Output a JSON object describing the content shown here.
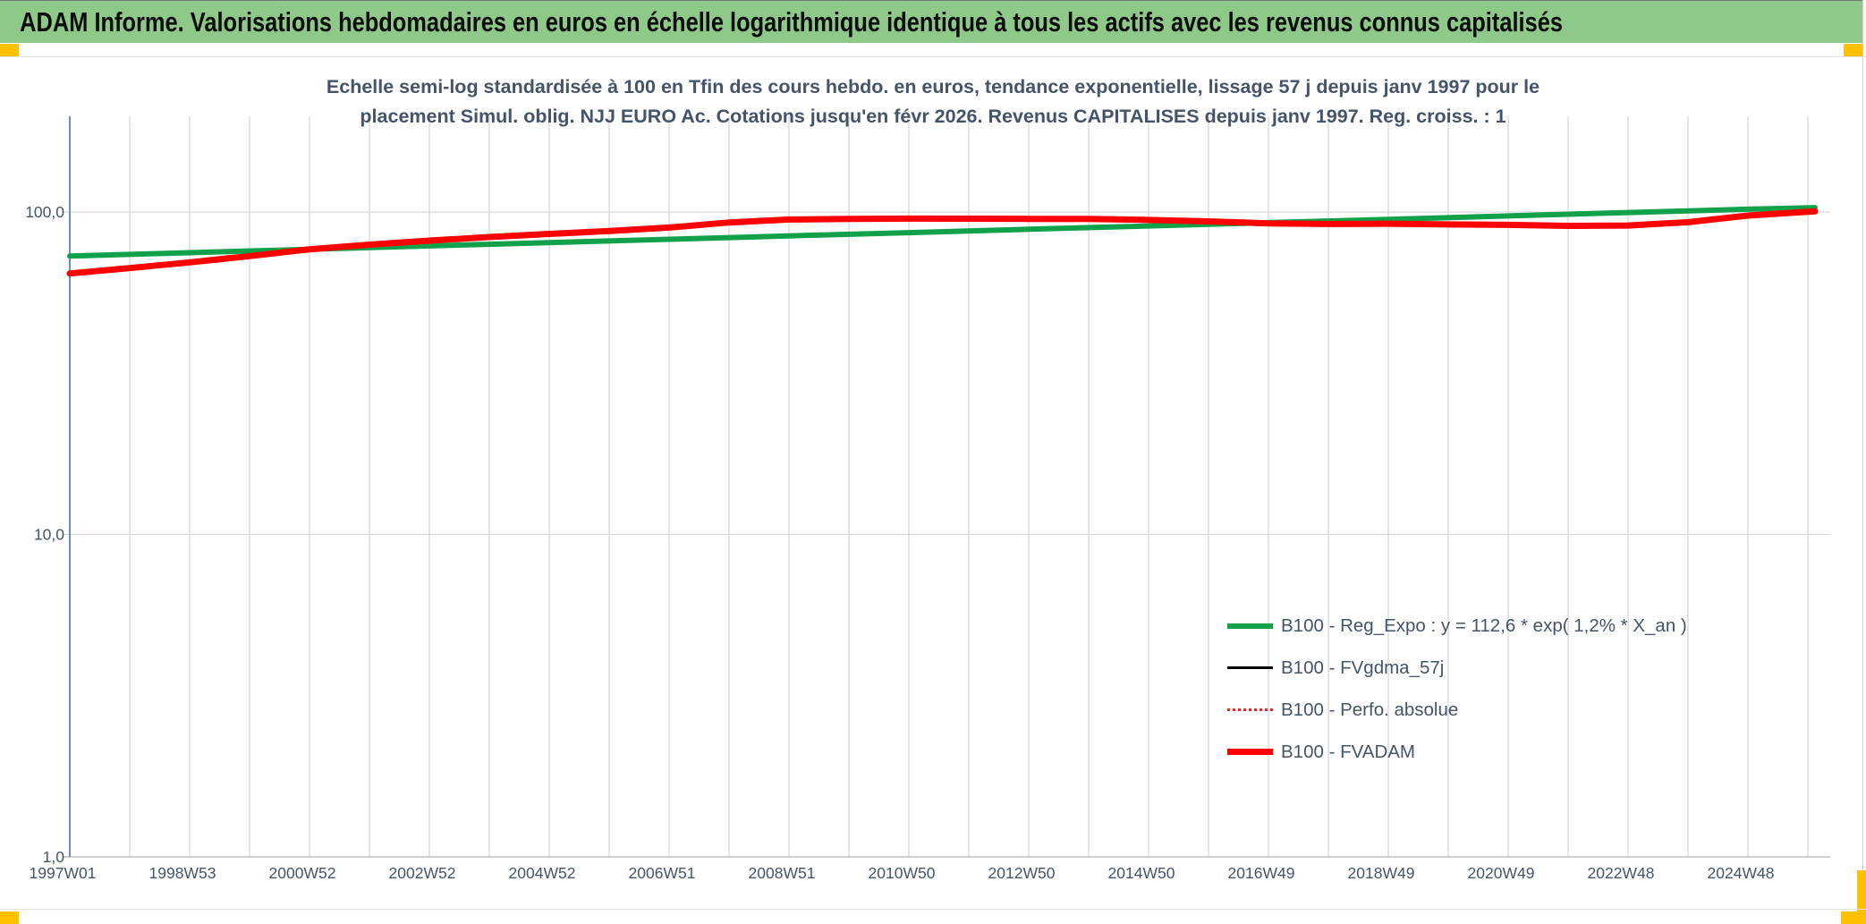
{
  "header": {
    "title": "ADAM Informe. Valorisations hebdomadaires en euros en échelle logarithmique identique à tous les actifs avec les revenus connus capitalisés",
    "bg_color": "#8FC98A",
    "text_color": "#0d0d0d"
  },
  "accents": {
    "orange_marker": "#FFC000",
    "grid_color": "#D9D9D9",
    "axis_line_color": "#BFBFBF",
    "y_axis_color": "#4472C4",
    "text_navy": "#44546A"
  },
  "chart_data": {
    "type": "line",
    "title_line1": "Echelle semi-log standardisée à 100 en Tfin des cours hebdo. en euros, tendance exponentielle, lissage 57 j depuis janv 1997 pour le",
    "title_line2": "placement Simul. oblig. NJJ EURO Ac. Cotations jusqu'en févr 2026. Revenus CAPITALISES depuis janv 1997. Reg. croiss. : 1",
    "y_scale": "log10",
    "ylim": [
      1,
      200
    ],
    "x_range_years": [
      1997.0,
      2026.3
    ],
    "grid": "on",
    "legend_position": "lower right",
    "y_ticks": [
      {
        "label": "100,0",
        "value": 100
      },
      {
        "label": "10,0",
        "value": 10
      },
      {
        "label": "1,0",
        "value": 1
      }
    ],
    "x_tick_labels": [
      "1997W01",
      "1998W53",
      "2000W52",
      "2002W52",
      "2004W52",
      "2006W51",
      "2008W51",
      "2010W50",
      "2012W50",
      "2014W50",
      "2016W49",
      "2018W49",
      "2020W49",
      "2022W48",
      "2024W48"
    ],
    "series": [
      {
        "name": "B100 - Reg_Expo : y = 112,6 * exp( 1,2% * X_an )",
        "color": "#12A14B",
        "width": 6,
        "style": "solid",
        "points": [
          [
            1997.0,
            73.0
          ],
          [
            1999,
            74.8
          ],
          [
            2001,
            76.6
          ],
          [
            2003,
            78.5
          ],
          [
            2005,
            80.4
          ],
          [
            2007,
            82.3
          ],
          [
            2009,
            84.3
          ],
          [
            2011,
            86.3
          ],
          [
            2013,
            88.4
          ],
          [
            2015,
            90.5
          ],
          [
            2017,
            92.7
          ],
          [
            2019,
            94.9
          ],
          [
            2021,
            97.2
          ],
          [
            2023,
            99.6
          ],
          [
            2025,
            102.0
          ],
          [
            2026.12,
            103.2
          ]
        ]
      },
      {
        "name": "B100 - FVgdma_57j",
        "color": "#000000",
        "width": 2.5,
        "style": "solid",
        "points": [
          [
            1997.0,
            64.5
          ],
          [
            1998,
            67.0
          ],
          [
            1999,
            69.8
          ],
          [
            2000,
            73.0
          ],
          [
            2001,
            76.6
          ],
          [
            2002,
            79.2
          ],
          [
            2003,
            81.5
          ],
          [
            2004,
            83.6
          ],
          [
            2005,
            85.5
          ],
          [
            2006,
            87.3
          ],
          [
            2007,
            89.5
          ],
          [
            2008,
            92.8
          ],
          [
            2009,
            94.8
          ],
          [
            2010,
            95.2
          ],
          [
            2011,
            95.4
          ],
          [
            2012,
            95.3
          ],
          [
            2013,
            95.2
          ],
          [
            2014,
            95.2
          ],
          [
            2015,
            94.5
          ],
          [
            2016,
            93.5
          ],
          [
            2017,
            92.2
          ],
          [
            2018,
            91.8
          ],
          [
            2019,
            92.0
          ],
          [
            2020,
            91.5
          ],
          [
            2021,
            91.2
          ],
          [
            2022,
            90.6
          ],
          [
            2023,
            90.8
          ],
          [
            2024,
            93.0
          ],
          [
            2025,
            97.5
          ],
          [
            2026.12,
            100.5
          ]
        ]
      },
      {
        "name": "B100 - Perfo. absolue",
        "color": "#E0282B",
        "width": 2.5,
        "style": "dotted",
        "points": [
          [
            1997.0,
            64.5
          ],
          [
            1998,
            67.0
          ],
          [
            1999,
            69.8
          ],
          [
            2000,
            73.0
          ],
          [
            2001,
            76.6
          ],
          [
            2002,
            79.2
          ],
          [
            2003,
            81.5
          ],
          [
            2004,
            83.6
          ],
          [
            2005,
            85.5
          ],
          [
            2006,
            87.3
          ],
          [
            2007,
            89.5
          ],
          [
            2008,
            92.8
          ],
          [
            2009,
            94.8
          ],
          [
            2010,
            95.2
          ],
          [
            2011,
            95.4
          ],
          [
            2012,
            95.3
          ],
          [
            2013,
            95.2
          ],
          [
            2014,
            95.2
          ],
          [
            2015,
            94.5
          ],
          [
            2016,
            93.5
          ],
          [
            2017,
            92.2
          ],
          [
            2018,
            91.8
          ],
          [
            2019,
            92.0
          ],
          [
            2020,
            91.5
          ],
          [
            2021,
            91.2
          ],
          [
            2022,
            90.6
          ],
          [
            2023,
            90.8
          ],
          [
            2024,
            93.0
          ],
          [
            2025,
            97.5
          ],
          [
            2026.12,
            100.5
          ]
        ]
      },
      {
        "name": "B100 - FVADAM",
        "color": "#FE0000",
        "width": 7,
        "style": "solid",
        "points": [
          [
            1997.0,
            64.5
          ],
          [
            1998,
            67.0
          ],
          [
            1999,
            69.8
          ],
          [
            2000,
            73.0
          ],
          [
            2001,
            76.6
          ],
          [
            2002,
            79.2
          ],
          [
            2003,
            81.5
          ],
          [
            2004,
            83.6
          ],
          [
            2005,
            85.5
          ],
          [
            2006,
            87.3
          ],
          [
            2007,
            89.5
          ],
          [
            2008,
            92.8
          ],
          [
            2009,
            94.8
          ],
          [
            2010,
            95.2
          ],
          [
            2011,
            95.4
          ],
          [
            2012,
            95.3
          ],
          [
            2013,
            95.2
          ],
          [
            2014,
            95.2
          ],
          [
            2015,
            94.5
          ],
          [
            2016,
            93.5
          ],
          [
            2017,
            92.2
          ],
          [
            2018,
            91.8
          ],
          [
            2019,
            92.0
          ],
          [
            2020,
            91.5
          ],
          [
            2021,
            91.2
          ],
          [
            2022,
            90.6
          ],
          [
            2023,
            90.8
          ],
          [
            2024,
            93.0
          ],
          [
            2025,
            97.5
          ],
          [
            2026.12,
            100.5
          ]
        ]
      }
    ]
  }
}
